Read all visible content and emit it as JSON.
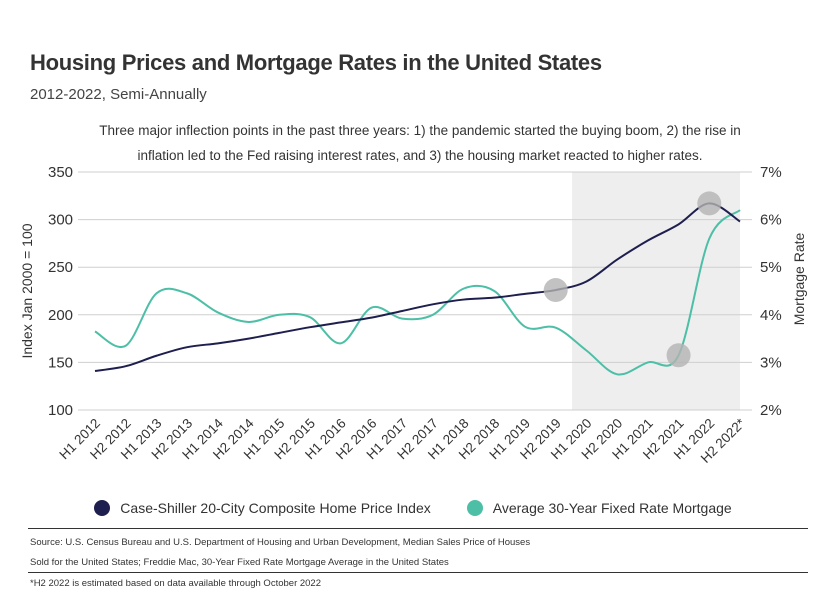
{
  "header": {
    "title": "Housing Prices and Mortgage Rates in the United States",
    "subtitle": "2012-2022, Semi-Annually",
    "note": "Three major inflection points in the past three years: 1) the pandemic started the buying boom, 2) the rise in inflation led to the Fed raising interest rates, and 3) the housing market reacted to higher rates."
  },
  "chart_data": {
    "type": "line",
    "categories": [
      "H1 2012",
      "H2 2012",
      "H1 2013",
      "H2 2013",
      "H1 2014",
      "H2 2014",
      "H1 2015",
      "H2 2015",
      "H1 2016",
      "H2 2016",
      "H1 2017",
      "H2 2017",
      "H1 2018",
      "H2 2018",
      "H1 2019",
      "H2 2019",
      "H1 2020",
      "H2 2020",
      "H1 2021",
      "H2 2021",
      "H1 2022",
      "H2 2022*"
    ],
    "ylabel": "Index Jan 2000 = 100",
    "y2label": "Mortgage Rate",
    "ylim": [
      100,
      350
    ],
    "y_ticks": [
      "350",
      "300",
      "250",
      "200",
      "150",
      "100"
    ],
    "y2lim": [
      2,
      7
    ],
    "y2_ticks": [
      "7%",
      "6%",
      "5%",
      "4%",
      "3%",
      "2%"
    ],
    "grid": true,
    "legend_position": "bottom",
    "shaded_region": [
      "H1 2020",
      "H2 2022*"
    ],
    "series": [
      {
        "name": "Case-Shiller 20-City Composite Home Price Index",
        "axis": "left",
        "color": "#1e1f4e",
        "values": [
          141,
          146,
          157,
          166,
          170,
          175,
          181,
          187,
          192,
          197,
          204,
          211,
          216,
          218,
          222,
          226,
          235,
          258,
          278,
          295,
          317,
          298
        ]
      },
      {
        "name": "Average 30-Year Fixed Rate Mortgage",
        "axis": "right",
        "color": "#4cbfa6",
        "values": [
          3.65,
          3.35,
          4.45,
          4.45,
          4.05,
          3.85,
          4.0,
          3.95,
          3.4,
          4.15,
          3.92,
          4.0,
          4.55,
          4.5,
          3.75,
          3.73,
          3.25,
          2.75,
          3.0,
          3.15,
          5.6,
          6.2
        ]
      }
    ],
    "highlight_points": [
      {
        "series": 0,
        "index": 15
      },
      {
        "series": 0,
        "index": 20
      },
      {
        "series": 1,
        "index": 19
      }
    ]
  },
  "footer": {
    "source_line1": "Source:  U.S. Census Bureau and U.S. Department of Housing and Urban Development, Median Sales Price of Houses",
    "source_line2": "Sold for the United States; Freddie Mac, 30-Year Fixed Rate Mortgage Average in the United States",
    "footnote": "*H2 2022 is estimated based on data available through October 2022"
  }
}
